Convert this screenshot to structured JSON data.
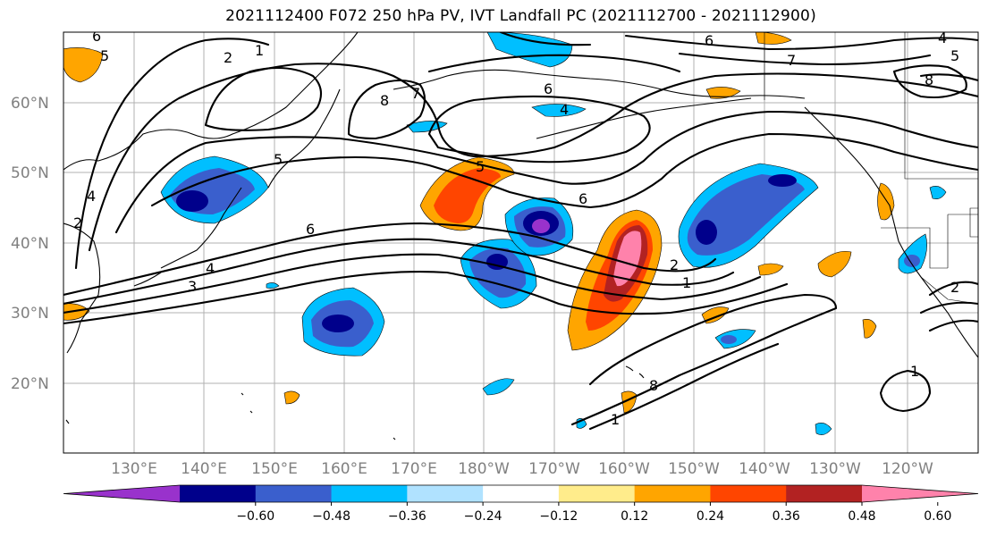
{
  "title": "2021112400 F072 250 hPa PV, IVT Landfall PC (2021112700 - 2021112900)",
  "latitudes": [
    "60°N",
    "50°N",
    "40°N",
    "30°N",
    "20°N"
  ],
  "longitudes": [
    "130°E",
    "140°E",
    "150°E",
    "160°E",
    "170°E",
    "180°W",
    "170°W",
    "160°W",
    "150°W",
    "140°W",
    "130°W",
    "120°W"
  ],
  "colorbar": {
    "ticks": [
      "−0.60",
      "−0.48",
      "−0.36",
      "−0.24",
      "−0.12",
      "0.12",
      "0.24",
      "0.36",
      "0.48",
      "0.60"
    ],
    "colors": [
      "#9932cc",
      "#00008b",
      "#3a5fcd",
      "#00bfff",
      "#b0e2ff",
      "#ffffff",
      "#ffec8b",
      "#ffa500",
      "#ff4500",
      "#b22222",
      "#ff82ab"
    ]
  },
  "contour_labels": [
    "6",
    "5",
    "2",
    "1",
    "7",
    "8",
    "6",
    "6",
    "4",
    "6",
    "7",
    "5",
    "4",
    "8",
    "5",
    "6",
    "6",
    "2",
    "1",
    "3",
    "4",
    "5",
    "2",
    "1",
    "1",
    "2",
    "1",
    "1",
    "8"
  ]
}
